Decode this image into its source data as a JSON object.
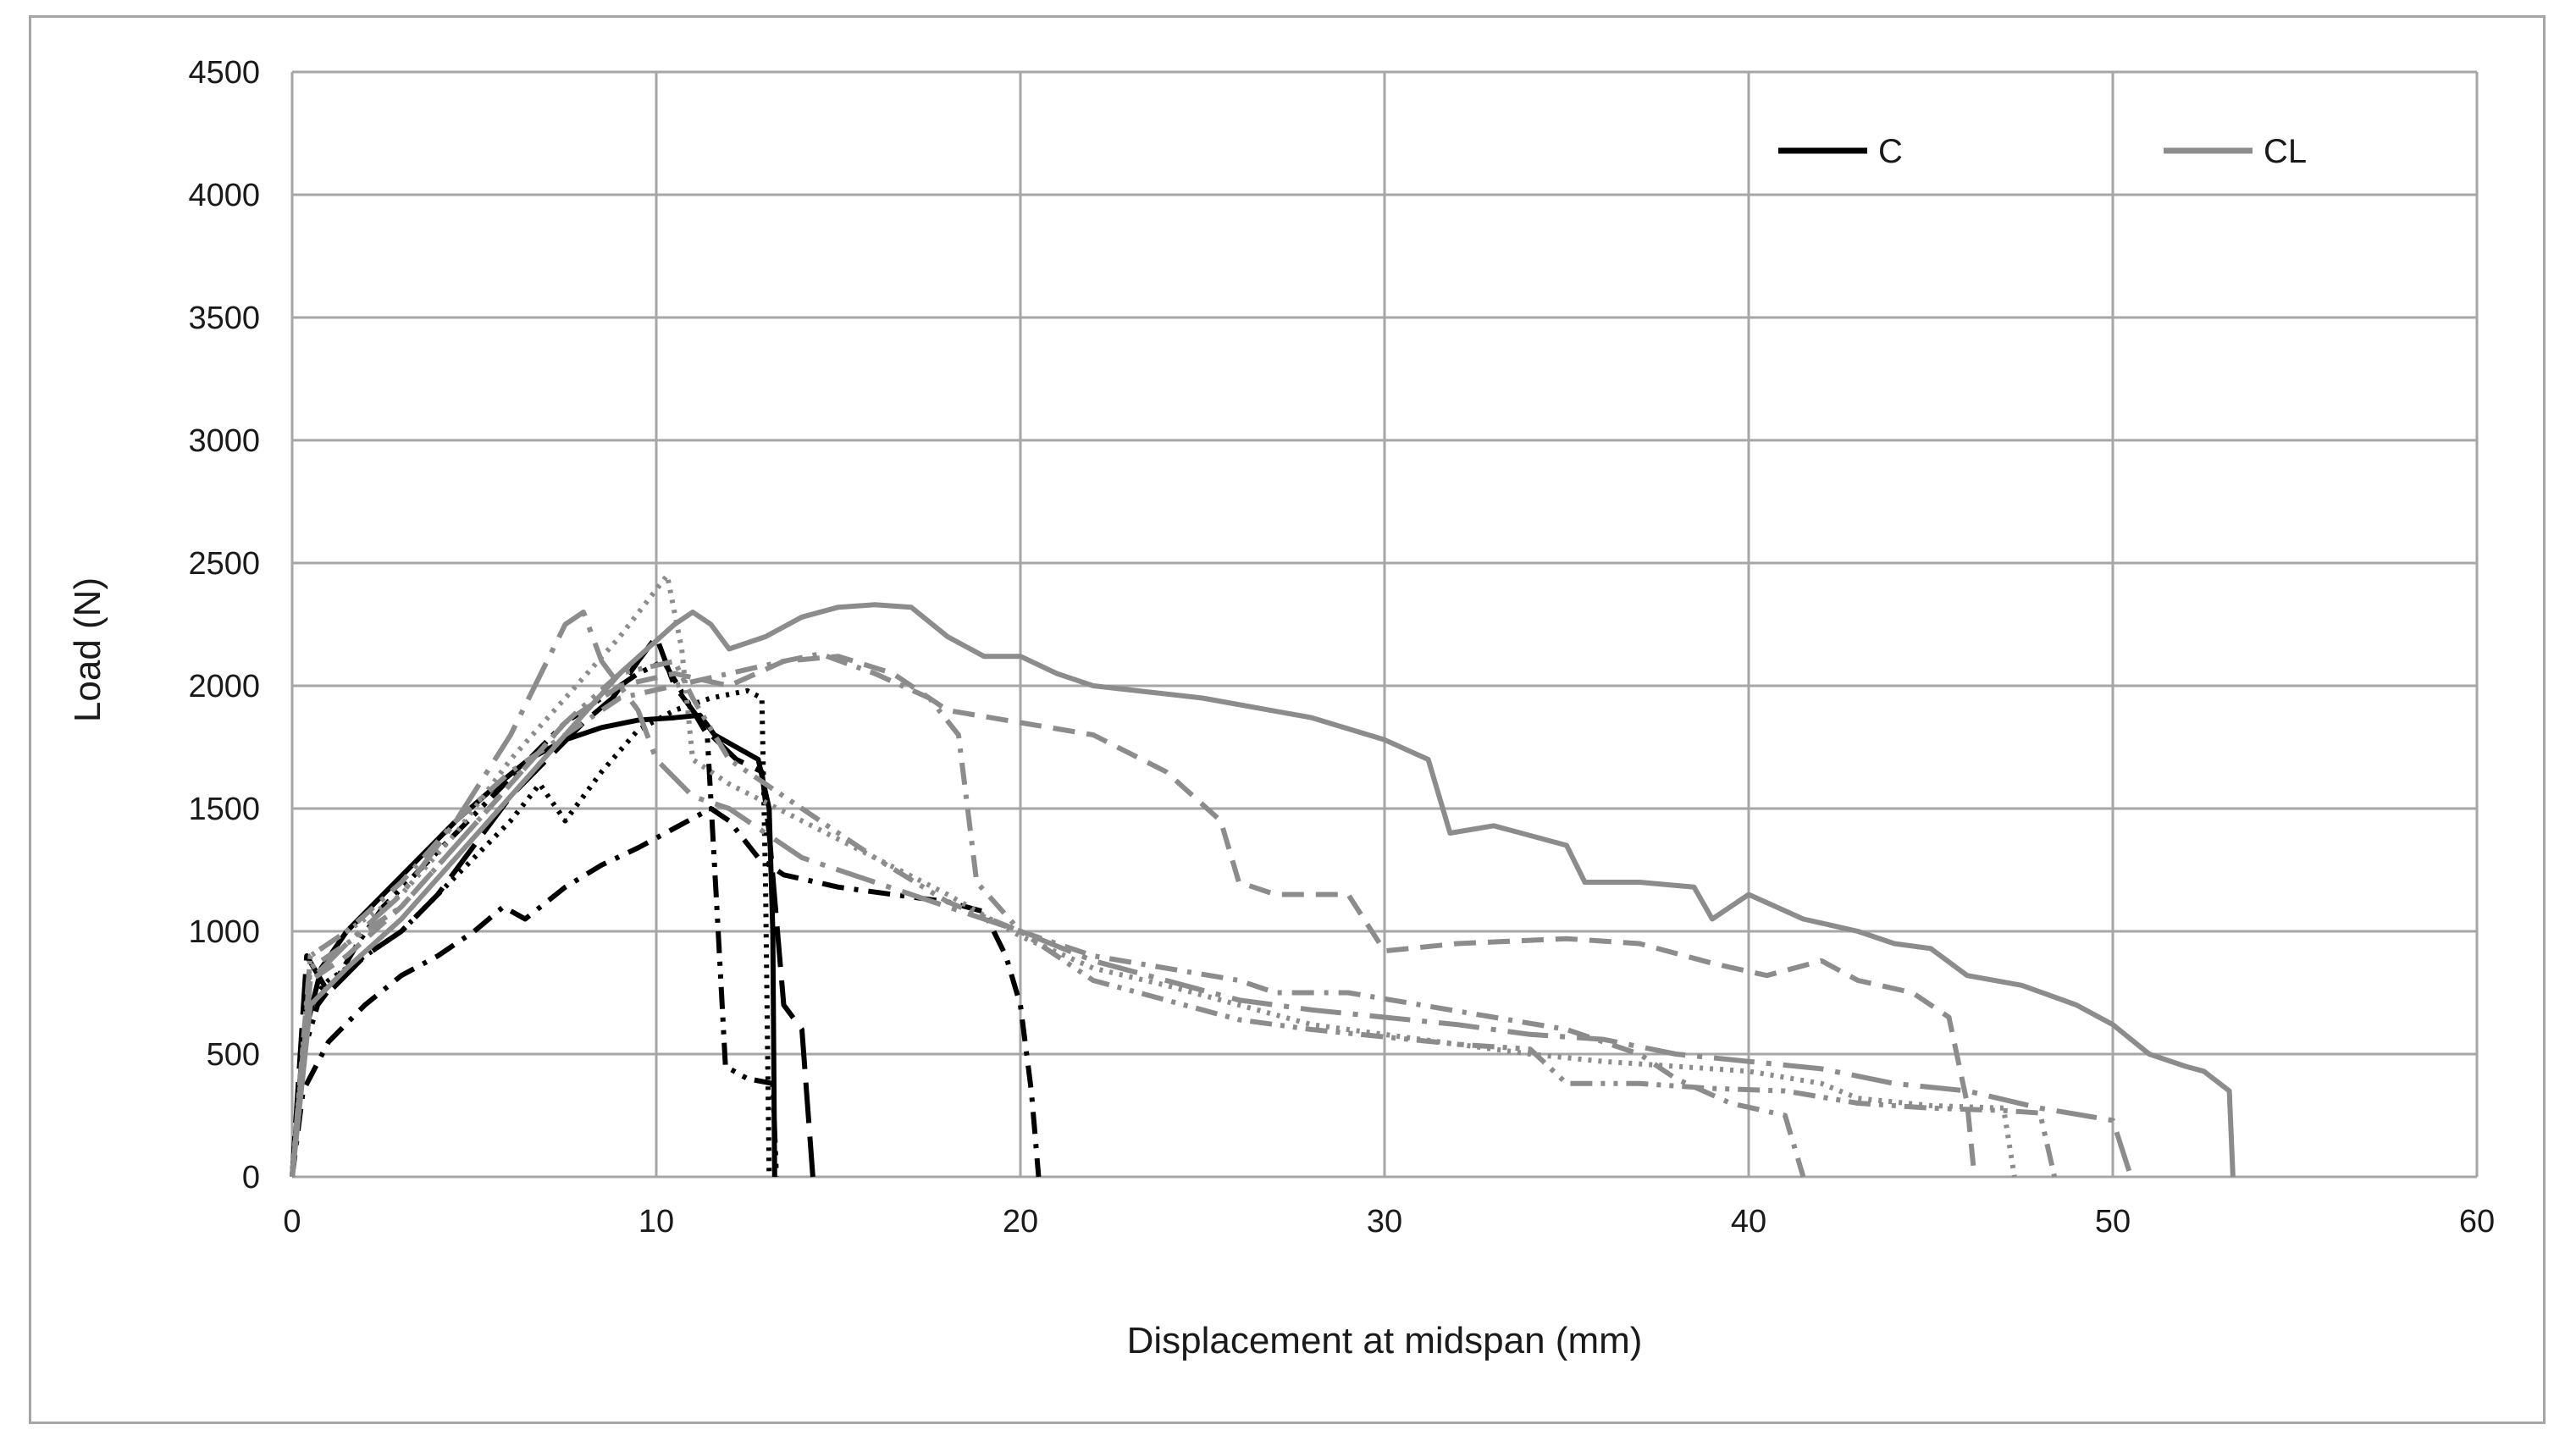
{
  "chart_data": {
    "type": "line",
    "title": "",
    "xlabel": "Displacement at midspan (mm)",
    "ylabel": "Load (N)",
    "xlim": [
      0,
      60
    ],
    "ylim": [
      0,
      4500
    ],
    "x_ticks": [
      0,
      10,
      20,
      30,
      40,
      50,
      60
    ],
    "y_ticks": [
      0,
      500,
      1000,
      1500,
      2000,
      2500,
      3000,
      3500,
      4000,
      4500
    ],
    "grid": true,
    "legend": {
      "placement": "top-right",
      "entries": [
        {
          "label": "C",
          "color": "#000000"
        },
        {
          "label": "CL",
          "color": "#8c8c8c"
        }
      ]
    },
    "colors": {
      "C": "#000000",
      "CL": "#8c8c8c",
      "grid": "#a6a6a6",
      "frame": "#a6a6a6"
    },
    "series": [
      {
        "group": "C",
        "dash": "solid",
        "points": [
          [
            0,
            0
          ],
          [
            0.3,
            550
          ],
          [
            0.8,
            850
          ],
          [
            1.5,
            1000
          ],
          [
            2.5,
            1150
          ],
          [
            3.5,
            1300
          ],
          [
            4.5,
            1450
          ],
          [
            5.5,
            1580
          ],
          [
            6.5,
            1700
          ],
          [
            7.5,
            1780
          ],
          [
            8.5,
            1830
          ],
          [
            9.5,
            1860
          ],
          [
            10.5,
            1870
          ],
          [
            11.2,
            1880
          ],
          [
            11.6,
            1800
          ],
          [
            12.2,
            1750
          ],
          [
            12.8,
            1700
          ],
          [
            13.1,
            1500
          ],
          [
            13.2,
            1000
          ],
          [
            13.25,
            0
          ]
        ]
      },
      {
        "group": "C",
        "dash": "dash-dot",
        "points": [
          [
            0,
            0
          ],
          [
            0.3,
            350
          ],
          [
            1,
            550
          ],
          [
            2,
            700
          ],
          [
            3,
            820
          ],
          [
            4,
            900
          ],
          [
            5,
            1000
          ],
          [
            5.8,
            1100
          ],
          [
            6.4,
            1050
          ],
          [
            7.5,
            1180
          ],
          [
            8.5,
            1270
          ],
          [
            9.5,
            1340
          ],
          [
            10.5,
            1420
          ],
          [
            11.5,
            1500
          ],
          [
            12,
            1450
          ],
          [
            12.8,
            1300
          ],
          [
            13.5,
            1230
          ],
          [
            15,
            1180
          ],
          [
            16.5,
            1150
          ],
          [
            18,
            1120
          ],
          [
            19,
            1080
          ],
          [
            19.6,
            900
          ],
          [
            20,
            700
          ],
          [
            20.3,
            350
          ],
          [
            20.5,
            0
          ]
        ]
      },
      {
        "group": "C",
        "dash": "dotted",
        "points": [
          [
            0,
            0
          ],
          [
            0.4,
            700
          ],
          [
            1,
            800
          ],
          [
            2,
            900
          ],
          [
            3,
            1000
          ],
          [
            4,
            1150
          ],
          [
            5,
            1300
          ],
          [
            6,
            1450
          ],
          [
            6.8,
            1600
          ],
          [
            7.5,
            1450
          ],
          [
            8.5,
            1650
          ],
          [
            9.5,
            1820
          ],
          [
            10.5,
            1900
          ],
          [
            11.5,
            1950
          ],
          [
            12.5,
            1980
          ],
          [
            12.9,
            1950
          ],
          [
            13,
            1200
          ],
          [
            13.1,
            0
          ]
        ]
      },
      {
        "group": "C",
        "dash": "dash-dot-dot",
        "points": [
          [
            0,
            0
          ],
          [
            0.3,
            500
          ],
          [
            0.7,
            700
          ],
          [
            1.2,
            800
          ],
          [
            1.8,
            950
          ],
          [
            2.5,
            1100
          ],
          [
            3.5,
            1250
          ],
          [
            4.5,
            1400
          ],
          [
            5.5,
            1550
          ],
          [
            6.5,
            1700
          ],
          [
            7.5,
            1850
          ],
          [
            8.5,
            1950
          ],
          [
            9.5,
            2050
          ],
          [
            10.2,
            2100
          ],
          [
            10.8,
            1950
          ],
          [
            11.4,
            1800
          ],
          [
            11.7,
            1000
          ],
          [
            11.9,
            450
          ],
          [
            12.5,
            400
          ],
          [
            13.2,
            380
          ],
          [
            13.3,
            0
          ]
        ]
      },
      {
        "group": "C",
        "dash": "long-dash",
        "points": [
          [
            0,
            0
          ],
          [
            0.4,
            900
          ],
          [
            1,
            750
          ],
          [
            2,
            900
          ],
          [
            3,
            1000
          ],
          [
            4,
            1150
          ],
          [
            5,
            1350
          ],
          [
            6,
            1550
          ],
          [
            7,
            1700
          ],
          [
            8,
            1850
          ],
          [
            8.8,
            1950
          ],
          [
            9.5,
            2100
          ],
          [
            10,
            2200
          ],
          [
            10.5,
            2000
          ],
          [
            11.5,
            1800
          ],
          [
            12.2,
            1700
          ],
          [
            12.9,
            1650
          ],
          [
            13.1,
            1400
          ],
          [
            13.5,
            700
          ],
          [
            14,
            600
          ],
          [
            14.3,
            0
          ]
        ]
      },
      {
        "group": "CL",
        "dash": "solid",
        "points": [
          [
            0,
            0
          ],
          [
            0.5,
            700
          ],
          [
            1.5,
            850
          ],
          [
            3,
            1050
          ],
          [
            4.5,
            1300
          ],
          [
            6,
            1550
          ],
          [
            7.5,
            1800
          ],
          [
            9,
            2050
          ],
          [
            10.5,
            2250
          ],
          [
            11,
            2300
          ],
          [
            11.5,
            2250
          ],
          [
            12,
            2150
          ],
          [
            13,
            2200
          ],
          [
            14,
            2280
          ],
          [
            15,
            2320
          ],
          [
            16,
            2330
          ],
          [
            17,
            2320
          ],
          [
            18,
            2200
          ],
          [
            19,
            2120
          ],
          [
            20,
            2120
          ],
          [
            21,
            2050
          ],
          [
            22,
            2000
          ],
          [
            25,
            1950
          ],
          [
            28,
            1870
          ],
          [
            30,
            1780
          ],
          [
            31.2,
            1700
          ],
          [
            31.8,
            1400
          ],
          [
            33,
            1430
          ],
          [
            35,
            1350
          ],
          [
            35.5,
            1200
          ],
          [
            37,
            1200
          ],
          [
            38.5,
            1180
          ],
          [
            39,
            1050
          ],
          [
            40,
            1150
          ],
          [
            41.5,
            1050
          ],
          [
            43,
            1000
          ],
          [
            44,
            950
          ],
          [
            45,
            930
          ],
          [
            46,
            820
          ],
          [
            47.5,
            780
          ],
          [
            49,
            700
          ],
          [
            50,
            620
          ],
          [
            51,
            500
          ],
          [
            52,
            450
          ],
          [
            52.5,
            430
          ],
          [
            53.2,
            350
          ],
          [
            53.3,
            0
          ]
        ]
      },
      {
        "group": "CL",
        "dash": "dash",
        "points": [
          [
            0,
            0
          ],
          [
            0.5,
            800
          ],
          [
            1.5,
            900
          ],
          [
            3,
            1100
          ],
          [
            4.5,
            1350
          ],
          [
            6,
            1600
          ],
          [
            7.5,
            1850
          ],
          [
            9,
            2000
          ],
          [
            10.5,
            2050
          ],
          [
            12,
            2000
          ],
          [
            13.5,
            2100
          ],
          [
            15,
            2120
          ],
          [
            16.5,
            2050
          ],
          [
            18,
            1900
          ],
          [
            20,
            1850
          ],
          [
            22,
            1800
          ],
          [
            24,
            1650
          ],
          [
            25.5,
            1450
          ],
          [
            26,
            1200
          ],
          [
            27,
            1150
          ],
          [
            29,
            1150
          ],
          [
            30,
            920
          ],
          [
            32,
            950
          ],
          [
            35,
            970
          ],
          [
            37,
            950
          ],
          [
            39,
            870
          ],
          [
            40.5,
            820
          ],
          [
            42,
            880
          ],
          [
            43,
            800
          ],
          [
            44.5,
            750
          ],
          [
            45.5,
            650
          ],
          [
            46,
            300
          ],
          [
            46.2,
            0
          ]
        ]
      },
      {
        "group": "CL",
        "dash": "dotted",
        "points": [
          [
            0,
            0
          ],
          [
            0.5,
            900
          ],
          [
            1.5,
            1000
          ],
          [
            3,
            1150
          ],
          [
            4.5,
            1400
          ],
          [
            6,
            1700
          ],
          [
            7.5,
            1950
          ],
          [
            9,
            2200
          ],
          [
            10.3,
            2450
          ],
          [
            10.7,
            2150
          ],
          [
            11,
            1700
          ],
          [
            12,
            1600
          ],
          [
            14,
            1450
          ],
          [
            16,
            1300
          ],
          [
            18,
            1150
          ],
          [
            20,
            980
          ],
          [
            22,
            850
          ],
          [
            24,
            780
          ],
          [
            26,
            700
          ],
          [
            28,
            620
          ],
          [
            30,
            580
          ],
          [
            32,
            540
          ],
          [
            34,
            500
          ],
          [
            36,
            470
          ],
          [
            38,
            450
          ],
          [
            40,
            430
          ],
          [
            42,
            380
          ],
          [
            43,
            320
          ],
          [
            45,
            290
          ],
          [
            47,
            280
          ],
          [
            47.3,
            0
          ]
        ]
      },
      {
        "group": "CL",
        "dash": "dash-dot",
        "points": [
          [
            0,
            0
          ],
          [
            0.5,
            900
          ],
          [
            1.5,
            1000
          ],
          [
            3,
            1200
          ],
          [
            4.5,
            1450
          ],
          [
            6,
            1650
          ],
          [
            7.5,
            1800
          ],
          [
            9,
            1950
          ],
          [
            10.5,
            2000
          ],
          [
            12,
            2050
          ],
          [
            13.5,
            2100
          ],
          [
            14.5,
            2130
          ],
          [
            16,
            2050
          ],
          [
            17.5,
            1950
          ],
          [
            18.3,
            1800
          ],
          [
            18.8,
            1200
          ],
          [
            20,
            1000
          ],
          [
            22,
            900
          ],
          [
            24,
            850
          ],
          [
            26,
            800
          ],
          [
            27,
            750
          ],
          [
            29,
            750
          ],
          [
            31,
            700
          ],
          [
            33,
            650
          ],
          [
            35,
            600
          ],
          [
            37,
            500
          ],
          [
            38,
            400
          ],
          [
            39.5,
            300
          ],
          [
            41,
            250
          ],
          [
            41.5,
            0
          ]
        ]
      },
      {
        "group": "CL",
        "dash": "long-dash-dot",
        "points": [
          [
            0,
            0
          ],
          [
            0.5,
            800
          ],
          [
            1.5,
            950
          ],
          [
            3,
            1150
          ],
          [
            4.5,
            1450
          ],
          [
            6,
            1800
          ],
          [
            7.5,
            2250
          ],
          [
            8,
            2300
          ],
          [
            8.5,
            2100
          ],
          [
            9.5,
            1900
          ],
          [
            10,
            1700
          ],
          [
            11,
            1550
          ],
          [
            12,
            1500
          ],
          [
            14,
            1300
          ],
          [
            16,
            1200
          ],
          [
            18,
            1100
          ],
          [
            20,
            1000
          ],
          [
            22,
            880
          ],
          [
            24,
            800
          ],
          [
            26,
            720
          ],
          [
            28,
            680
          ],
          [
            30,
            650
          ],
          [
            32,
            620
          ],
          [
            34,
            580
          ],
          [
            36,
            560
          ],
          [
            38,
            500
          ],
          [
            40,
            470
          ],
          [
            42,
            440
          ],
          [
            44,
            380
          ],
          [
            46,
            350
          ],
          [
            48,
            280
          ],
          [
            50,
            230
          ],
          [
            50.5,
            0
          ]
        ]
      },
      {
        "group": "CL",
        "dash": "dash-dot-dot",
        "points": [
          [
            0,
            0
          ],
          [
            0.5,
            850
          ],
          [
            1.5,
            950
          ],
          [
            3,
            1100
          ],
          [
            4.5,
            1350
          ],
          [
            6,
            1600
          ],
          [
            7.5,
            1850
          ],
          [
            9,
            2050
          ],
          [
            10.5,
            2100
          ],
          [
            11,
            1950
          ],
          [
            12,
            1700
          ],
          [
            14,
            1500
          ],
          [
            16,
            1300
          ],
          [
            18,
            1120
          ],
          [
            20,
            1000
          ],
          [
            22,
            800
          ],
          [
            24,
            720
          ],
          [
            26,
            640
          ],
          [
            28,
            600
          ],
          [
            30,
            570
          ],
          [
            32,
            540
          ],
          [
            34,
            520
          ],
          [
            35,
            380
          ],
          [
            37,
            380
          ],
          [
            39,
            360
          ],
          [
            41,
            350
          ],
          [
            43,
            300
          ],
          [
            45,
            280
          ],
          [
            47,
            270
          ],
          [
            48,
            260
          ],
          [
            48.4,
            0
          ]
        ]
      }
    ]
  }
}
